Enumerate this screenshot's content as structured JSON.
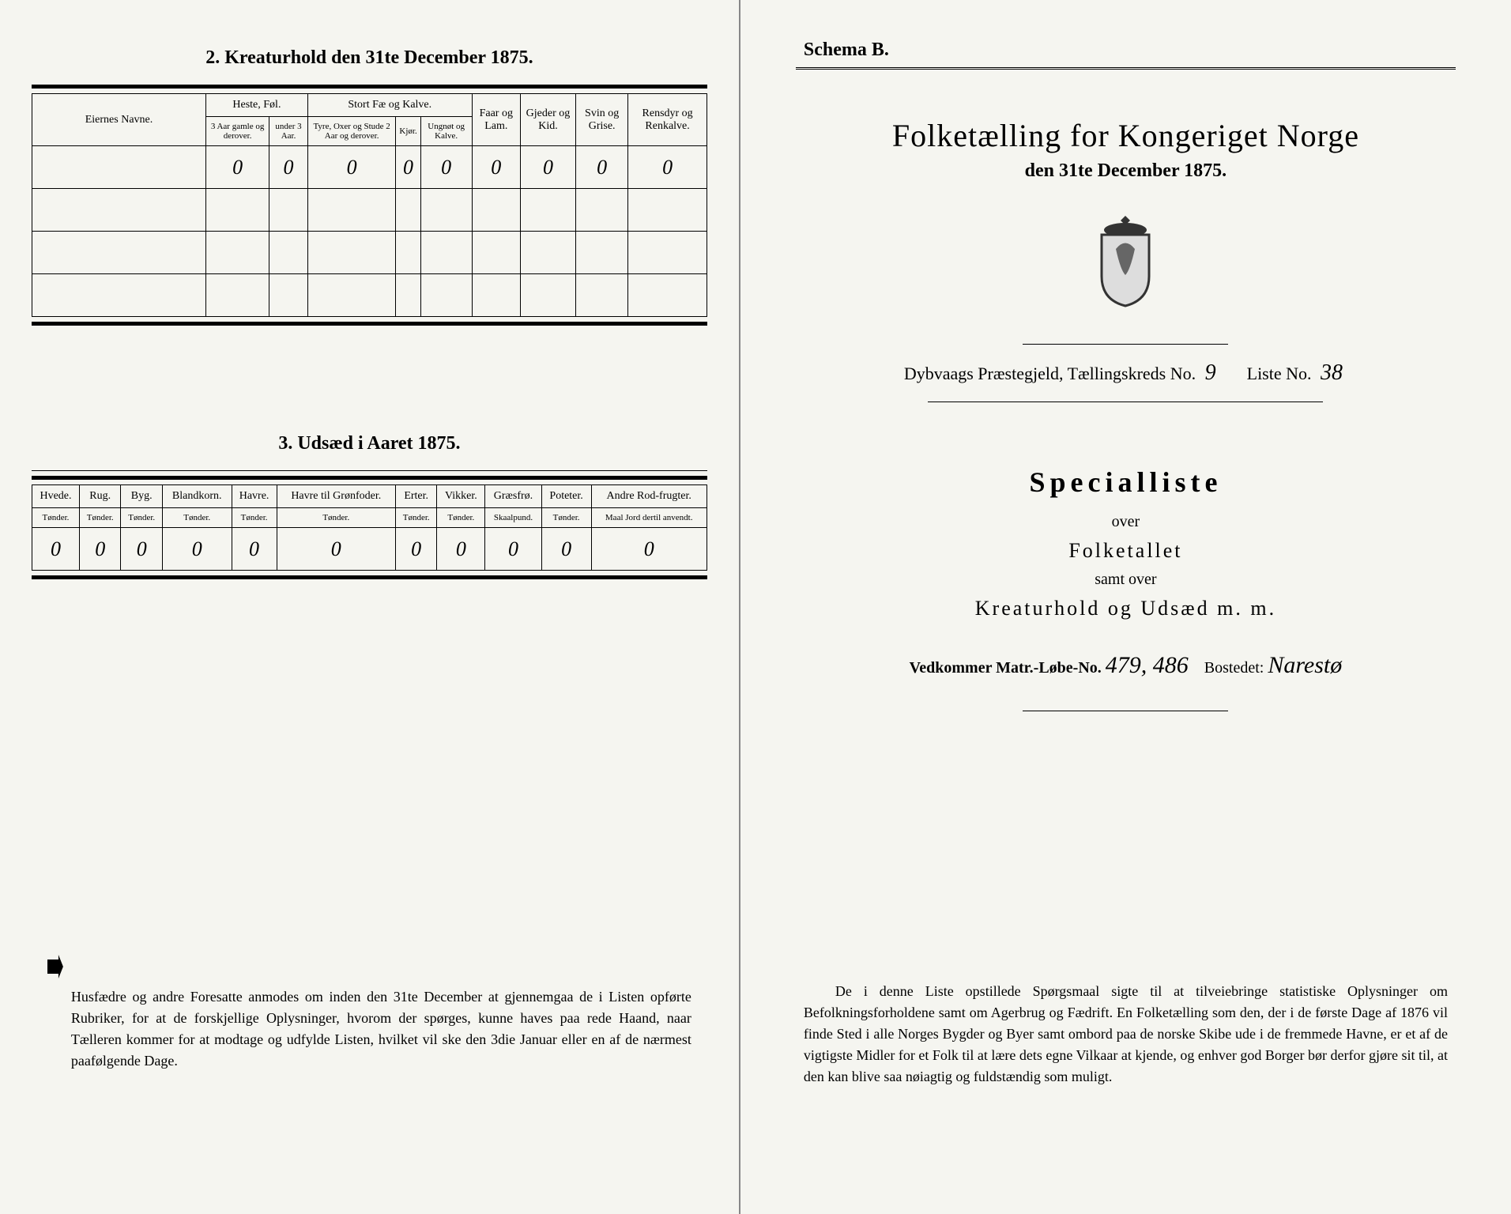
{
  "left": {
    "section2_title": "2. Kreaturhold den 31te December 1875.",
    "t2": {
      "col_eier": "Eiernes Navne.",
      "grp_heste": "Heste, Føl.",
      "grp_stort": "Stort Fæ og Kalve.",
      "col_faar": "Faar og Lam.",
      "col_gjed": "Gjeder og Kid.",
      "col_svin": "Svin og Grise.",
      "col_ren": "Rensdyr og Renkalve.",
      "sub_heste1": "3 Aar gamle og derover.",
      "sub_heste2": "under 3 Aar.",
      "sub_stort1": "Tyre, Oxer og Stude 2 Aar og derover.",
      "sub_stort2": "Kjør.",
      "sub_stort3": "Ungnøt og Kalve.",
      "row1": [
        "0",
        "0",
        "0",
        "0",
        "0",
        "0",
        "0",
        "0",
        "0"
      ]
    },
    "section3_title": "3. Udsæd i Aaret 1875.",
    "t3": {
      "cols": [
        {
          "h": "Hvede.",
          "s": "Tønder."
        },
        {
          "h": "Rug.",
          "s": "Tønder."
        },
        {
          "h": "Byg.",
          "s": "Tønder."
        },
        {
          "h": "Blandkorn.",
          "s": "Tønder."
        },
        {
          "h": "Havre.",
          "s": "Tønder."
        },
        {
          "h": "Havre til Grønfoder.",
          "s": "Tønder."
        },
        {
          "h": "Erter.",
          "s": "Tønder."
        },
        {
          "h": "Vikker.",
          "s": "Tønder."
        },
        {
          "h": "Græsfrø.",
          "s": "Skaalpund."
        },
        {
          "h": "Poteter.",
          "s": "Tønder."
        },
        {
          "h": "Andre Rod-frugter.",
          "s": "Maal Jord dertil anvendt."
        }
      ],
      "row": [
        "0",
        "0",
        "0",
        "0",
        "0",
        "0",
        "0",
        "0",
        "0",
        "0",
        "0"
      ]
    },
    "footer": "Husfædre og andre Foresatte anmodes om inden den 31te December at gjennemgaa de i Listen opførte Rubriker, for at de forskjellige Oplysninger, hvorom der spørges, kunne haves paa rede Haand, naar Tælleren kommer for at modtage og udfylde Listen, hvilket vil ske den 3die Januar eller en af de nærmest paafølgende Dage."
  },
  "right": {
    "schema": "Schema B.",
    "title": "Folketælling for Kongeriget Norge",
    "date": "den 31te December 1875.",
    "parish_pre": "Dybvaags Præstegjeld, Tællingskreds No.",
    "parish_no": "9",
    "liste_pre": "Liste No.",
    "liste_no": "38",
    "special": "Specialliste",
    "over": "over",
    "folketallet": "Folketallet",
    "samt": "samt over",
    "kreatur": "Kreaturhold og Udsæd m. m.",
    "matr_pre": "Vedkommer Matr.-Løbe-No.",
    "matr_no": "479, 486",
    "bosted_pre": "Bostedet:",
    "bosted": "Narestø",
    "footer": "De i denne Liste opstillede Spørgsmaal sigte til at tilveiebringe statistiske Oplysninger om Befolkningsforholdene samt om Agerbrug og Fædrift. En Folketælling som den, der i de første Dage af 1876 vil finde Sted i alle Norges Bygder og Byer samt ombord paa de norske Skibe ude i de fremmede Havne, er et af de vigtigste Midler for et Folk til at lære dets egne Vilkaar at kjende, og enhver god Borger bør derfor gjøre sit til, at den kan blive saa nøiagtig og fuldstændig som muligt."
  }
}
